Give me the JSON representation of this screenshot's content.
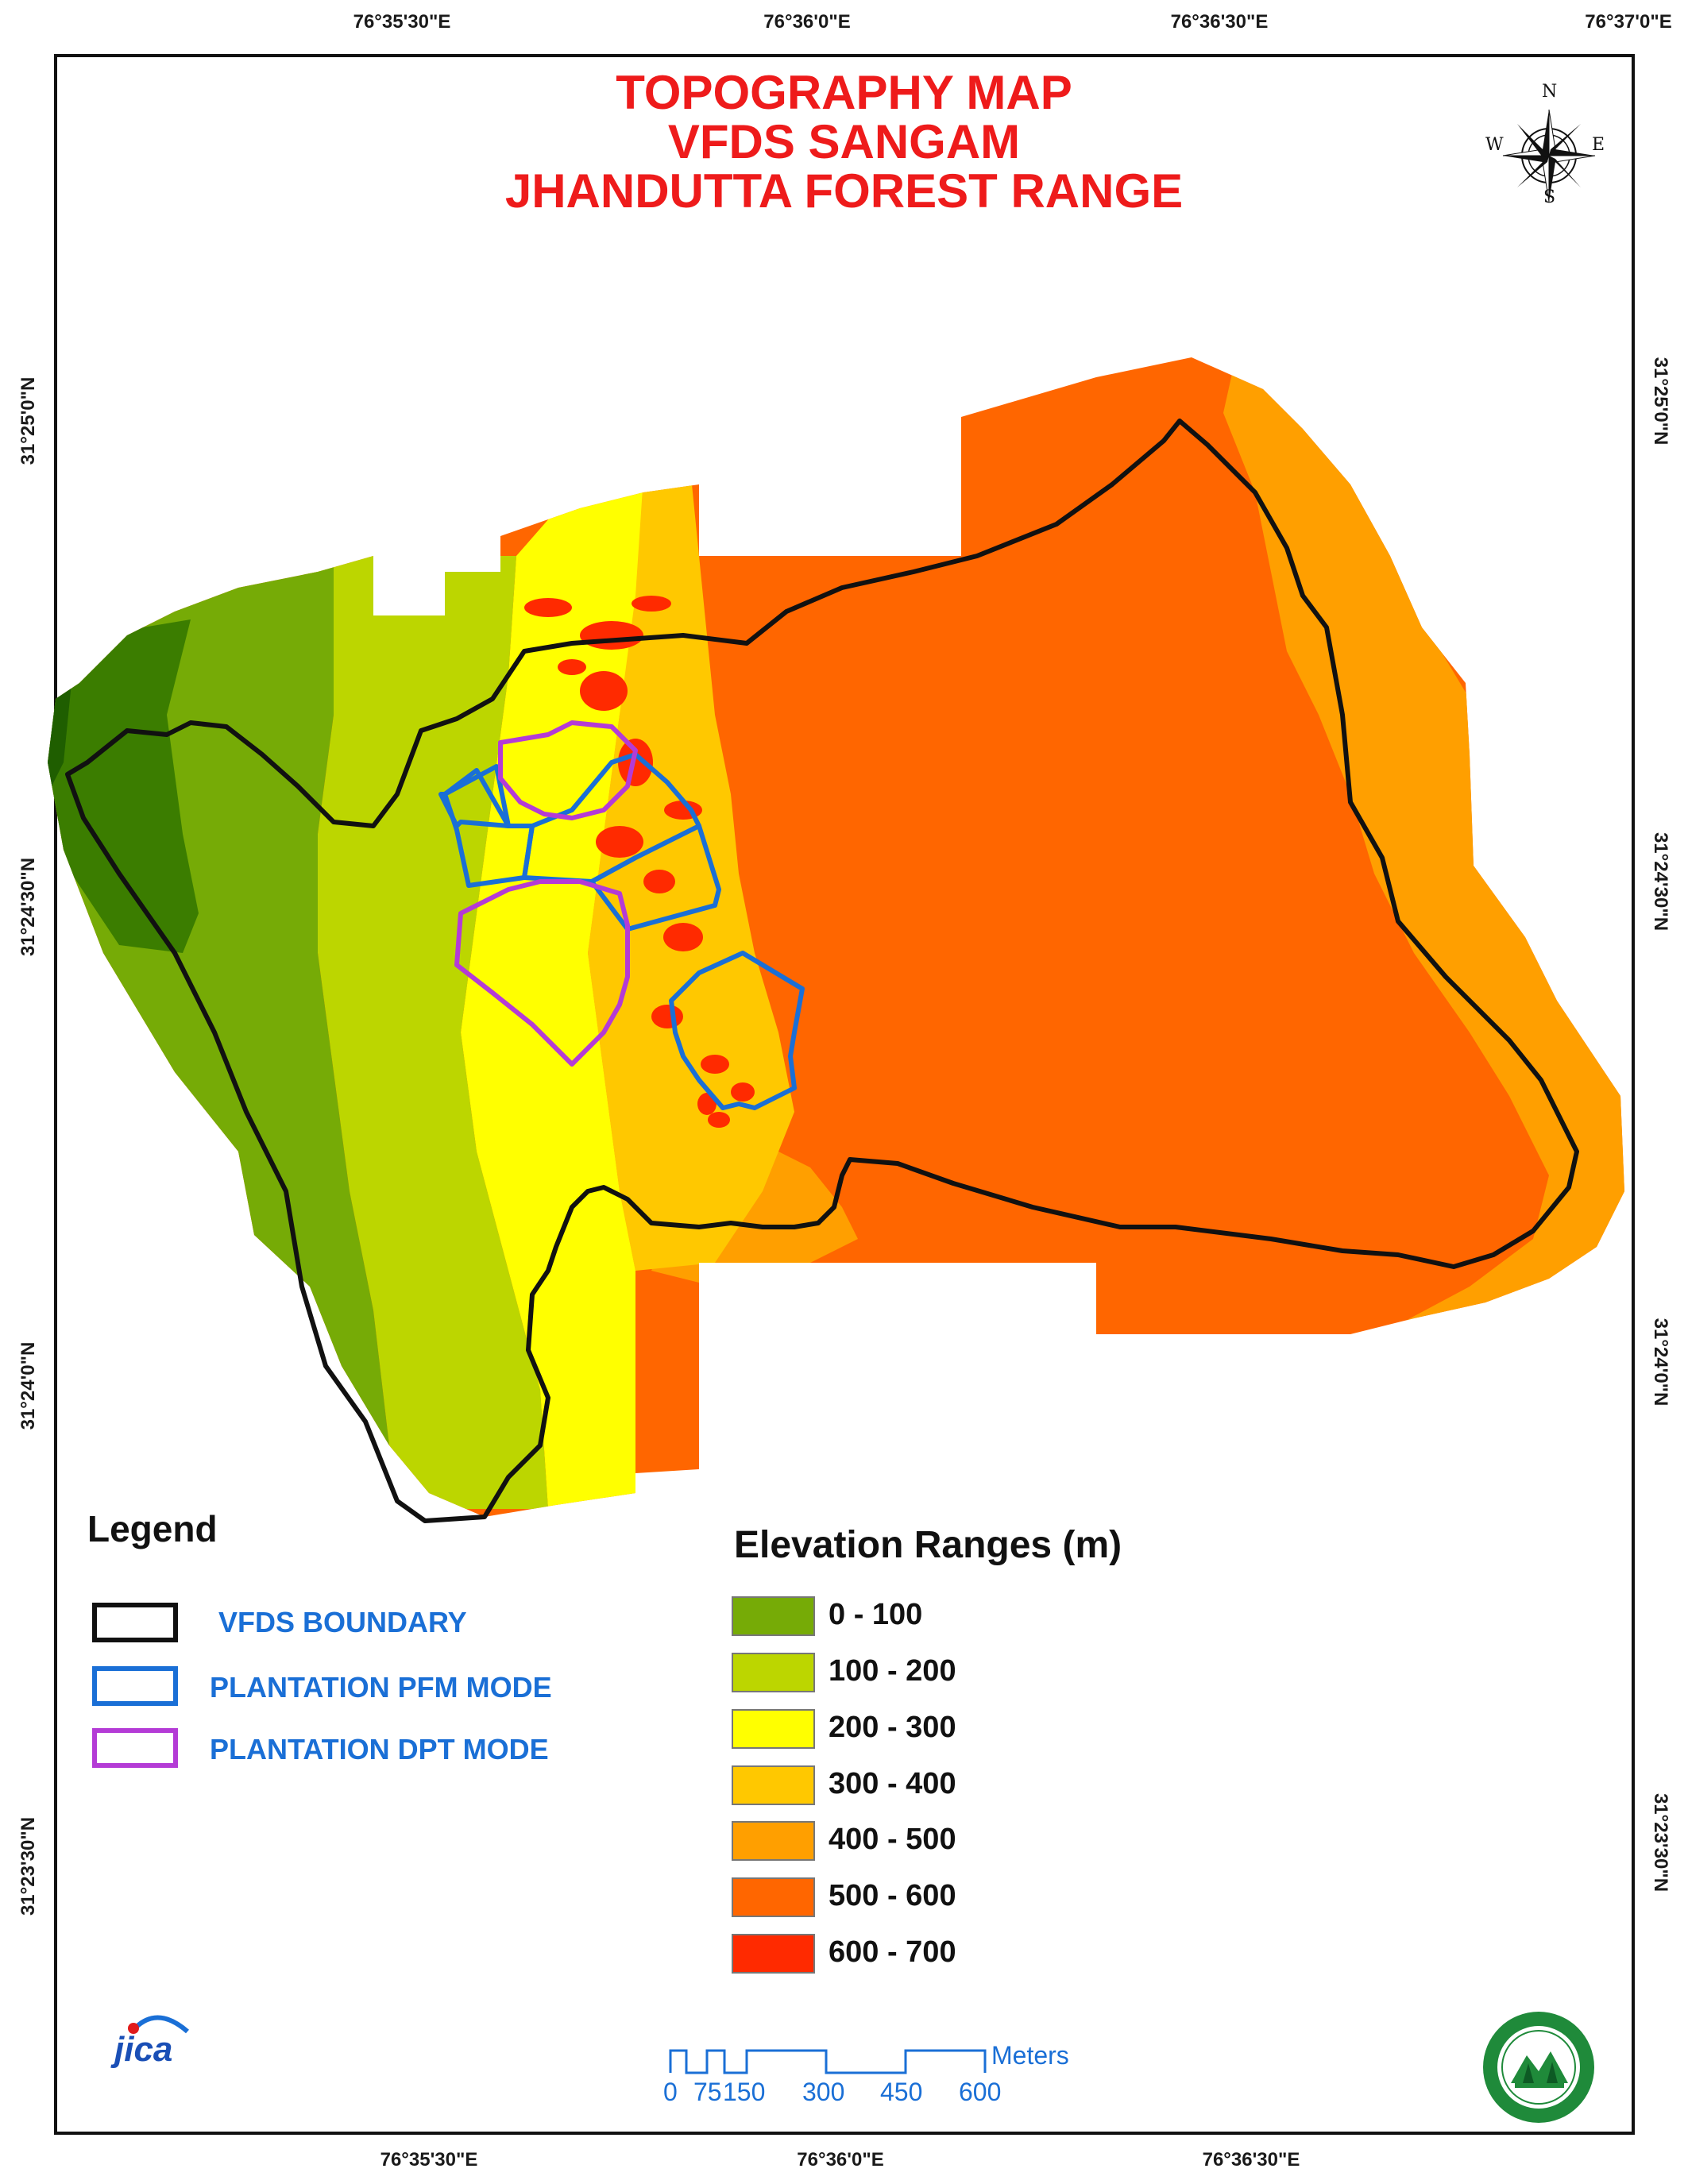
{
  "title": {
    "line1": "TOPOGRAPHY MAP",
    "line2": "VFDS SANGAM",
    "line3": "JHANDUTTA FOREST RANGE"
  },
  "graticule": {
    "top": [
      "76°35'30\"E",
      "76°36'0\"E",
      "76°36'30\"E",
      "76°37'0\"E"
    ],
    "bottom": [
      "76°35'30\"E",
      "76°36'0\"E",
      "76°36'30\"E"
    ],
    "left": [
      "31°25'0\"N",
      "31°24'30\"N",
      "31°24'0\"N",
      "31°23'30\"N"
    ],
    "right": [
      "31°25'0\"N",
      "31°24'30\"N",
      "31°24'0\"N",
      "31°23'30\"N"
    ]
  },
  "compass": {
    "n": "N",
    "s": "S",
    "e": "E",
    "w": "W"
  },
  "legend": {
    "title": "Legend",
    "items": [
      {
        "label": "VFDS BOUNDARY",
        "color": "#111111"
      },
      {
        "label": "PLANTATION PFM MODE",
        "color": "#1a6fd6"
      },
      {
        "label": "PLANTATION DPT  MODE",
        "color": "#b43bd6"
      }
    ]
  },
  "elevation": {
    "title": "Elevation Ranges (m)",
    "ranges": [
      {
        "label": "0 - 100",
        "color": "#76ab06"
      },
      {
        "label": "100 - 200",
        "color": "#bcd600"
      },
      {
        "label": "200 - 300",
        "color": "#ffff00"
      },
      {
        "label": "300 - 400",
        "color": "#ffc800"
      },
      {
        "label": "400 - 500",
        "color": "#ff9f00"
      },
      {
        "label": "500 - 600",
        "color": "#ff6600"
      },
      {
        "label": "600 - 700",
        "color": "#ff2a00"
      }
    ]
  },
  "scale_bar": {
    "unit": "Meters",
    "ticks": [
      "0",
      "75",
      "150",
      "300",
      "450",
      "600"
    ]
  },
  "logos": {
    "jica": "jica"
  }
}
